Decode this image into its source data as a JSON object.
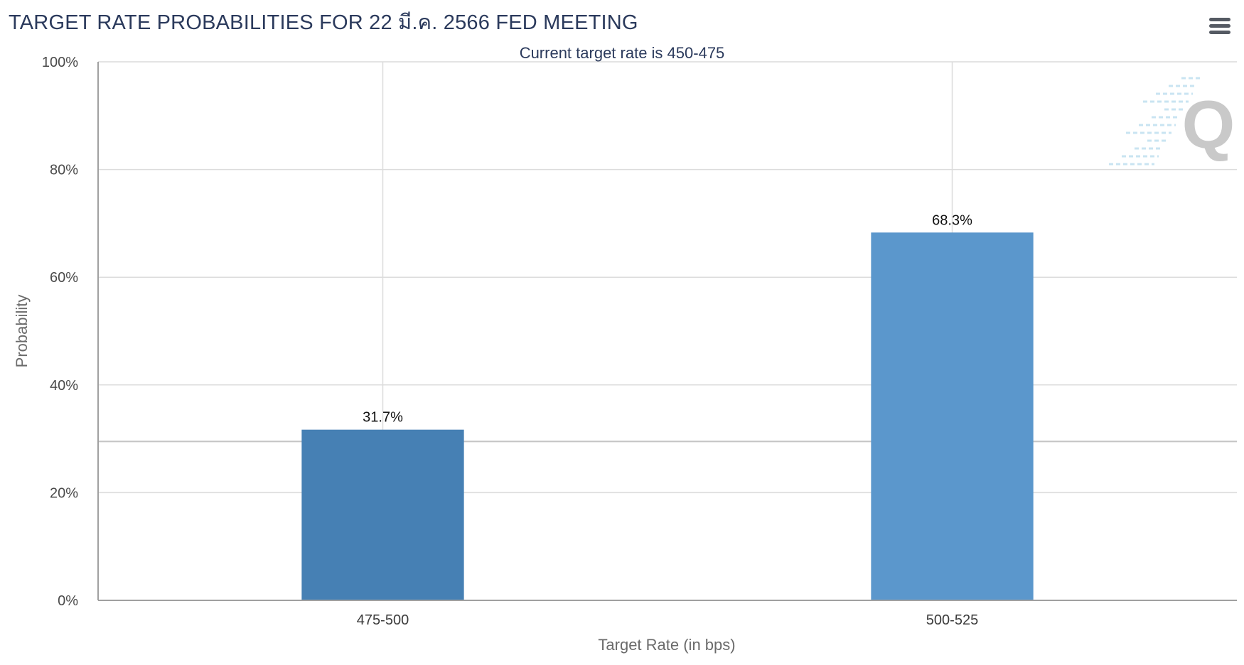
{
  "title": "TARGET RATE PROBABILITIES FOR 22 มี.ค. 2566 FED MEETING",
  "subtitle": "Current target rate is 450-475",
  "menu_icon": "hamburger-menu-icon",
  "watermark_icon": "quikstrike-q-logo",
  "colors": {
    "bar_1": "#4680b4",
    "bar_2": "#5b97cc",
    "grid": "#dcdcdc",
    "title": "#2b3a5c"
  },
  "chart_data": {
    "type": "bar",
    "title": "TARGET RATE PROBABILITIES FOR 22 มี.ค. 2566 FED MEETING",
    "subtitle": "Current target rate is 450-475",
    "xlabel": "Target Rate (in bps)",
    "ylabel": "Probability",
    "categories": [
      "475-500",
      "500-525"
    ],
    "values": [
      31.7,
      68.3
    ],
    "data_labels": [
      "31.7%",
      "68.3%"
    ],
    "ylim": [
      0,
      100
    ],
    "yticks": [
      0,
      20,
      40,
      60,
      80,
      100
    ],
    "ytick_labels": [
      "0%",
      "20%",
      "40%",
      "60%",
      "80%",
      "100%"
    ],
    "grid": true,
    "legend": "none"
  }
}
